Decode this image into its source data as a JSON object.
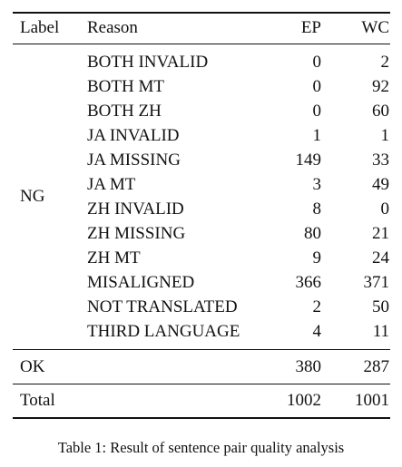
{
  "table": {
    "headers": {
      "label": "Label",
      "reason": "Reason",
      "ep": "EP",
      "wc": "WC"
    },
    "ng_group": {
      "label": "NG",
      "rows": [
        {
          "reason": "BOTH INVALID",
          "ep": "0",
          "wc": "2"
        },
        {
          "reason": "BOTH MT",
          "ep": "0",
          "wc": "92"
        },
        {
          "reason": "BOTH ZH",
          "ep": "0",
          "wc": "60"
        },
        {
          "reason": "JA INVALID",
          "ep": "1",
          "wc": "1"
        },
        {
          "reason": "JA MISSING",
          "ep": "149",
          "wc": "33"
        },
        {
          "reason": "JA MT",
          "ep": "3",
          "wc": "49"
        },
        {
          "reason": "ZH INVALID",
          "ep": "8",
          "wc": "0"
        },
        {
          "reason": "ZH MISSING",
          "ep": "80",
          "wc": "21"
        },
        {
          "reason": "ZH MT",
          "ep": "9",
          "wc": "24"
        },
        {
          "reason": "MISALIGNED",
          "ep": "366",
          "wc": "371"
        },
        {
          "reason": "NOT TRANSLATED",
          "ep": "2",
          "wc": "50"
        },
        {
          "reason": "THIRD LANGUAGE",
          "ep": "4",
          "wc": "11"
        }
      ]
    },
    "ok_row": {
      "label": "OK",
      "ep": "380",
      "wc": "287"
    },
    "total_row": {
      "label": "Total",
      "ep": "1002",
      "wc": "1001"
    }
  },
  "caption": "Table 1: Result of sentence pair quality analysis"
}
